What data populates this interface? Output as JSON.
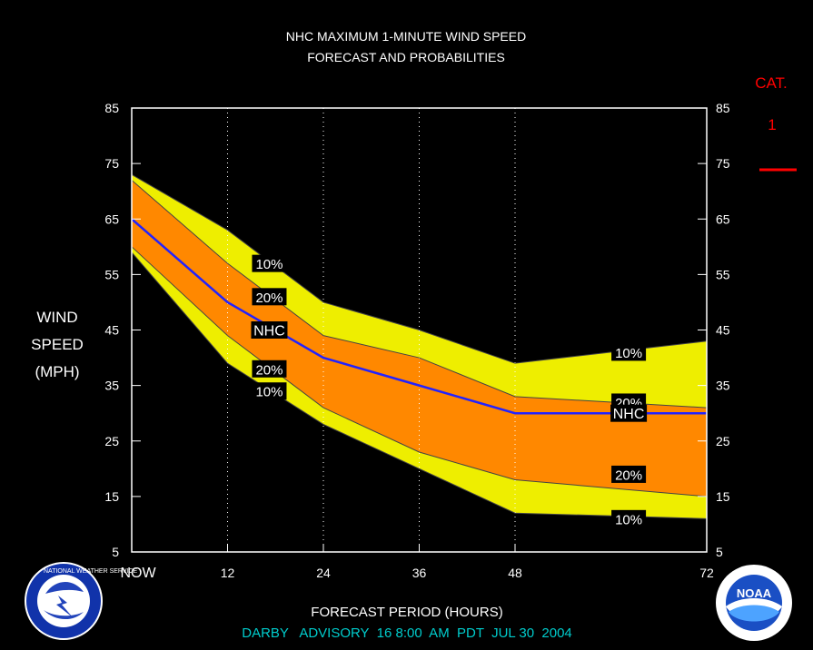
{
  "header": {
    "title_line1": "NHC MAXIMUM 1-MINUTE WIND SPEED",
    "title_line2": "FORECAST AND PROBABILITIES"
  },
  "chart_data": {
    "type": "area",
    "ylabel_lines": [
      "WIND",
      "SPEED",
      "(MPH)"
    ],
    "xlabel": "FORECAST PERIOD (HOURS)",
    "x": [
      0,
      12,
      24,
      36,
      48,
      72
    ],
    "x_tick_labels": [
      "NOW",
      "12",
      "24",
      "36",
      "48",
      "72"
    ],
    "ylim": [
      5,
      85
    ],
    "y_ticks": [
      5,
      15,
      25,
      35,
      45,
      55,
      65,
      75,
      85
    ],
    "series": [
      {
        "name": "10%",
        "role": "upper10",
        "values": [
          73,
          63,
          50,
          45,
          39,
          43
        ]
      },
      {
        "name": "20%",
        "role": "upper20",
        "values": [
          72,
          57,
          44,
          40,
          33,
          31
        ]
      },
      {
        "name": "NHC",
        "role": "nhc",
        "values": [
          65,
          50,
          40,
          35,
          30,
          30
        ]
      },
      {
        "name": "20%",
        "role": "lower20",
        "values": [
          60,
          44,
          31,
          23,
          18,
          15
        ]
      },
      {
        "name": "10%",
        "role": "lower10",
        "values": [
          59,
          39,
          28,
          20,
          12,
          11
        ]
      }
    ],
    "series_labels": [
      {
        "text": "10%",
        "x": 17,
        "y": 57
      },
      {
        "text": "20%",
        "x": 17,
        "y": 51
      },
      {
        "text": "NHC",
        "x": 17,
        "y": 45
      },
      {
        "text": "20%",
        "x": 17,
        "y": 38
      },
      {
        "text": "10%",
        "x": 17,
        "y": 34
      },
      {
        "text": "10%",
        "x": 62,
        "y": 41
      },
      {
        "text": "20%",
        "x": 62,
        "y": 32
      },
      {
        "text": "NHC",
        "x": 62,
        "y": 30
      },
      {
        "text": "20%",
        "x": 62,
        "y": 19
      },
      {
        "text": "10%",
        "x": 62,
        "y": 11
      }
    ],
    "colors": {
      "band10": "#eeee00",
      "band20": "#ff8800",
      "nhc_line": "#2222ff",
      "category_line": "#ff0000",
      "axis": "#ffffff",
      "footer": "#00cccc"
    },
    "grid": "vertical dotted at 12, 24, 36, 48",
    "category_key": {
      "label": "CAT.",
      "value": "1"
    }
  },
  "footer": {
    "advisory": "DARBY   ADVISORY  16 8:00  AM  PDT  JUL 30  2004"
  },
  "logos": {
    "left": {
      "icon": "nws-logo-icon",
      "text": "NATIONAL WEATHER SERVICE"
    },
    "right": {
      "icon": "noaa-logo-icon",
      "text": "NOAA"
    }
  }
}
